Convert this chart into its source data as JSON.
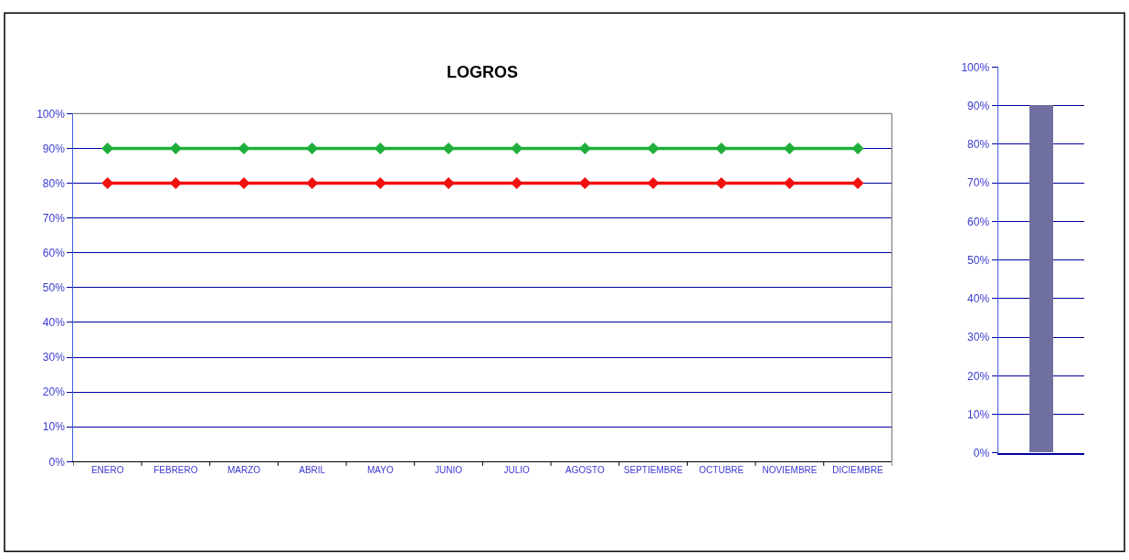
{
  "chart_data": [
    {
      "type": "line",
      "title": "LOGROS",
      "categories": [
        "ENERO",
        "FEBRERO",
        "MARZO",
        "ABRIL",
        "MAYO",
        "JUNIO",
        "JULIO",
        "AGOSTO",
        "SEPTIEMBRE",
        "OCTUBRE",
        "NOVIEMBRE",
        "DICIEMBRE"
      ],
      "series": [
        {
          "color": "#1fae3a",
          "values": [
            0.9,
            0.9,
            0.9,
            0.9,
            0.9,
            0.9,
            0.9,
            0.9,
            0.9,
            0.9,
            0.9,
            0.9
          ]
        },
        {
          "color": "#f01010",
          "values": [
            0.8,
            0.8,
            0.8,
            0.8,
            0.8,
            0.8,
            0.8,
            0.8,
            0.8,
            0.8,
            0.8,
            0.8
          ]
        }
      ],
      "ylim": [
        0,
        1
      ],
      "yticks": [
        {
          "value": 0,
          "label": "0%"
        },
        {
          "value": 0.1,
          "label": "10%"
        },
        {
          "value": 0.2,
          "label": "20%"
        },
        {
          "value": 0.3,
          "label": "30%"
        },
        {
          "value": 0.4,
          "label": "40%"
        },
        {
          "value": 0.5,
          "label": "50%"
        },
        {
          "value": 0.6,
          "label": "60%"
        },
        {
          "value": 0.7,
          "label": "70%"
        },
        {
          "value": 0.8,
          "label": "80%"
        },
        {
          "value": 0.9,
          "label": "90%"
        },
        {
          "value": 1,
          "label": "100%"
        }
      ],
      "grid": "y",
      "marker": "diamond",
      "line_style": "solid"
    },
    {
      "type": "bar",
      "categories": [
        null
      ],
      "values": [
        0.9
      ],
      "color": "#7070a0",
      "ylim": [
        0,
        1
      ],
      "yticks": [
        {
          "value": 0,
          "label": "0%"
        },
        {
          "value": 0.1,
          "label": "10%"
        },
        {
          "value": 0.2,
          "label": "20%"
        },
        {
          "value": 0.3,
          "label": "30%"
        },
        {
          "value": 0.4,
          "label": "40%"
        },
        {
          "value": 0.5,
          "label": "50%"
        },
        {
          "value": 0.6,
          "label": "60%"
        },
        {
          "value": 0.7,
          "label": "70%"
        },
        {
          "value": 0.8,
          "label": "80%"
        },
        {
          "value": 0.9,
          "label": "90%"
        },
        {
          "value": 1,
          "label": "100%"
        }
      ],
      "grid": "y"
    }
  ]
}
